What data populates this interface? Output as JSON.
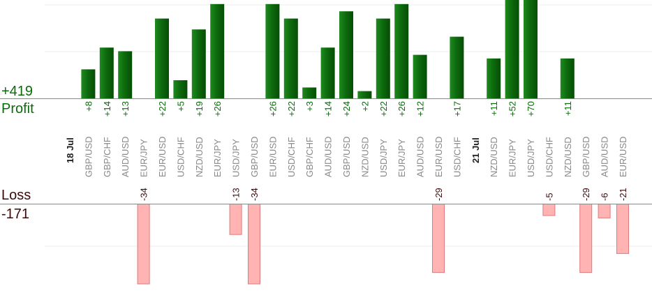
{
  "summary": {
    "profit_total": "+419",
    "profit_label": "Profit",
    "loss_label": "Loss",
    "loss_total": "-171"
  },
  "colors": {
    "profit_bar": "#0d6b0d",
    "profit_text": "#0a6b0a",
    "loss_fill": "#ffb3b3",
    "loss_stroke": "#e07a7a",
    "loss_text": "#3a0a0a",
    "axis": "#888888",
    "grid": "#eeeeee",
    "label_text": "#888888",
    "date_text": "#222222"
  },
  "chart_data": {
    "type": "bar",
    "title": "",
    "profit_ylim": [
      0,
      26
    ],
    "loss_ylim": [
      -34,
      0
    ],
    "grid": true,
    "columns": [
      {
        "kind": "date",
        "label": "18 Jul"
      },
      {
        "kind": "trade",
        "pair": "GBP/USD",
        "value": 8,
        "label": "+8"
      },
      {
        "kind": "trade",
        "pair": "GBP/CHF",
        "value": 14,
        "label": "+14"
      },
      {
        "kind": "trade",
        "pair": "AUD/USD",
        "value": 13,
        "label": "+13"
      },
      {
        "kind": "trade",
        "pair": "EUR/JPY",
        "value": -34,
        "label": "-34"
      },
      {
        "kind": "trade",
        "pair": "EUR/USD",
        "value": 22,
        "label": "+22"
      },
      {
        "kind": "trade",
        "pair": "USD/CHF",
        "value": 5,
        "label": "+5"
      },
      {
        "kind": "trade",
        "pair": "NZD/USD",
        "value": 19,
        "label": "+19"
      },
      {
        "kind": "trade",
        "pair": "EUR/JPY",
        "value": 26,
        "label": "+26"
      },
      {
        "kind": "trade",
        "pair": "USD/JPY",
        "value": -13,
        "label": "-13"
      },
      {
        "kind": "trade",
        "pair": "GBP/USD",
        "value": -34,
        "label": "-34"
      },
      {
        "kind": "trade",
        "pair": "EUR/USD",
        "value": 26,
        "label": "+26"
      },
      {
        "kind": "trade",
        "pair": "USD/CHF",
        "value": 22,
        "label": "+22"
      },
      {
        "kind": "trade",
        "pair": "GBP/CHF",
        "value": 3,
        "label": "+3"
      },
      {
        "kind": "trade",
        "pair": "AUD/USD",
        "value": 14,
        "label": "+14"
      },
      {
        "kind": "trade",
        "pair": "GBP/USD",
        "value": 24,
        "label": "+24"
      },
      {
        "kind": "trade",
        "pair": "NZD/USD",
        "value": 2,
        "label": "+2"
      },
      {
        "kind": "trade",
        "pair": "USD/JPY",
        "value": 22,
        "label": "+22"
      },
      {
        "kind": "trade",
        "pair": "EUR/JPY",
        "value": 26,
        "label": "+26"
      },
      {
        "kind": "trade",
        "pair": "AUD/USD",
        "value": 12,
        "label": "+12"
      },
      {
        "kind": "trade",
        "pair": "EUR/USD",
        "value": -29,
        "label": "-29"
      },
      {
        "kind": "trade",
        "pair": "USD/CHF",
        "value": 17,
        "label": "+17"
      },
      {
        "kind": "date",
        "label": "21 Jul"
      },
      {
        "kind": "trade",
        "pair": "NZD/USD",
        "value": 11,
        "label": "+11"
      },
      {
        "kind": "trade",
        "pair": "EUR/JPY",
        "value": 52,
        "label": "+52"
      },
      {
        "kind": "trade",
        "pair": "USD/JPY",
        "value": 70,
        "label": "+70"
      },
      {
        "kind": "trade",
        "pair": "USD/CHF",
        "value": -5,
        "label": "-5"
      },
      {
        "kind": "trade",
        "pair": "NZD/USD",
        "value": 11,
        "label": "+11"
      },
      {
        "kind": "trade",
        "pair": "GBP/USD",
        "value": -29,
        "label": "-29"
      },
      {
        "kind": "trade",
        "pair": "AUD/USD",
        "value": -6,
        "label": "-6"
      },
      {
        "kind": "trade",
        "pair": "EUR/USD",
        "value": -21,
        "label": "-21"
      }
    ]
  }
}
